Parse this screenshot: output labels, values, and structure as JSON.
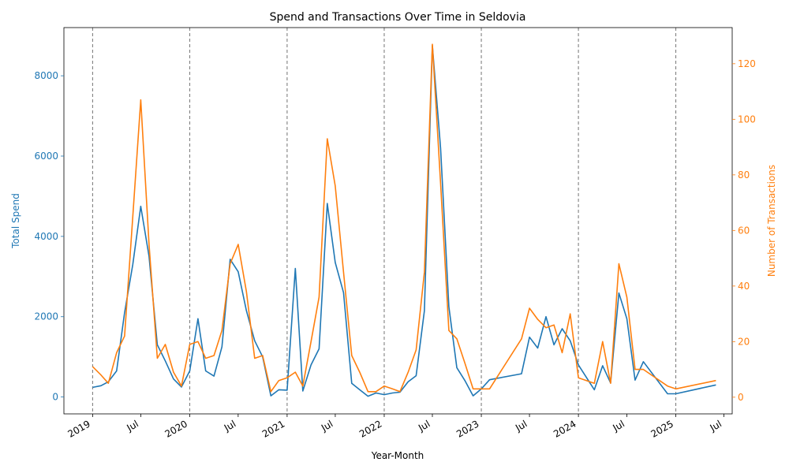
{
  "chart_data": {
    "type": "line",
    "title": "Spend and Transactions Over Time in Seldovia",
    "xlabel": "Year-Month",
    "ylabel_left": "Total Spend",
    "ylabel_right": "Number of Transactions",
    "left_color": "#1f77b4",
    "right_color": "#ff7f0e",
    "xlim": [
      "2018-09-15",
      "2025-08-01"
    ],
    "ylim_left": [
      -420,
      9200
    ],
    "ylim_right": [
      -6,
      133
    ],
    "left_ticks": [
      0,
      2000,
      4000,
      6000,
      8000
    ],
    "left_tick_labels": [
      "0",
      "2000",
      "4000",
      "6000",
      "8000"
    ],
    "right_ticks": [
      0,
      20,
      40,
      60,
      80,
      100,
      120
    ],
    "right_tick_labels": [
      "0",
      "20",
      "40",
      "60",
      "80",
      "100",
      "120"
    ],
    "x_ticks": [
      "2019-01-01",
      "2019-07-01",
      "2020-01-01",
      "2020-07-01",
      "2021-01-01",
      "2021-07-01",
      "2022-01-01",
      "2022-07-01",
      "2023-01-01",
      "2023-07-01",
      "2024-01-01",
      "2024-07-01",
      "2025-01-01",
      "2025-07-01"
    ],
    "x_tick_labels": [
      "2019",
      "Jul",
      "2020",
      "Jul",
      "2021",
      "Jul",
      "2022",
      "Jul",
      "2023",
      "Jul",
      "2024",
      "Jul",
      "2025",
      "Jul"
    ],
    "year_lines": [
      "2019-01-01",
      "2020-01-01",
      "2021-01-01",
      "2022-01-01",
      "2023-01-01",
      "2024-01-01",
      "2025-01-01"
    ],
    "series": [
      {
        "name": "Total Spend",
        "axis": "left",
        "points": [
          [
            "2019-01-01",
            240
          ],
          [
            "2019-02-01",
            280
          ],
          [
            "2019-03-01",
            380
          ],
          [
            "2019-04-01",
            650
          ],
          [
            "2019-05-01",
            2100
          ],
          [
            "2019-06-01",
            3300
          ],
          [
            "2019-07-01",
            4750
          ],
          [
            "2019-08-01",
            3500
          ],
          [
            "2019-09-01",
            1300
          ],
          [
            "2019-10-01",
            900
          ],
          [
            "2019-11-01",
            450
          ],
          [
            "2019-12-01",
            250
          ],
          [
            "2020-01-01",
            650
          ],
          [
            "2020-02-01",
            1950
          ],
          [
            "2020-03-01",
            650
          ],
          [
            "2020-04-01",
            520
          ],
          [
            "2020-05-01",
            1250
          ],
          [
            "2020-06-01",
            3430
          ],
          [
            "2020-07-01",
            3120
          ],
          [
            "2020-08-01",
            2150
          ],
          [
            "2020-09-01",
            1400
          ],
          [
            "2020-10-01",
            1000
          ],
          [
            "2020-11-01",
            30
          ],
          [
            "2020-12-01",
            180
          ],
          [
            "2021-01-01",
            170
          ],
          [
            "2021-02-01",
            3200
          ],
          [
            "2021-03-01",
            150
          ],
          [
            "2021-04-01",
            800
          ],
          [
            "2021-05-01",
            1200
          ],
          [
            "2021-06-01",
            4820
          ],
          [
            "2021-07-01",
            3350
          ],
          [
            "2021-08-01",
            2600
          ],
          [
            "2021-09-01",
            340
          ],
          [
            "2021-10-01",
            180
          ],
          [
            "2021-11-01",
            20
          ],
          [
            "2021-12-01",
            100
          ],
          [
            "2022-01-01",
            60
          ],
          [
            "2022-02-01",
            100
          ],
          [
            "2022-03-01",
            120
          ],
          [
            "2022-04-01",
            380
          ],
          [
            "2022-05-01",
            530
          ],
          [
            "2022-06-01",
            2150
          ],
          [
            "2022-07-01",
            8750
          ],
          [
            "2022-08-01",
            6200
          ],
          [
            "2022-09-01",
            2250
          ],
          [
            "2022-10-01",
            730
          ],
          [
            "2022-11-01",
            400
          ],
          [
            "2022-12-01",
            30
          ],
          [
            "2023-01-01",
            200
          ],
          [
            "2023-02-01",
            430
          ],
          [
            "2023-06-01",
            580
          ],
          [
            "2023-07-01",
            1490
          ],
          [
            "2023-08-01",
            1220
          ],
          [
            "2023-09-01",
            2000
          ],
          [
            "2023-10-01",
            1300
          ],
          [
            "2023-11-01",
            1700
          ],
          [
            "2023-12-01",
            1400
          ],
          [
            "2024-01-01",
            800
          ],
          [
            "2024-03-01",
            180
          ],
          [
            "2024-04-01",
            780
          ],
          [
            "2024-05-01",
            350
          ],
          [
            "2024-06-01",
            2590
          ],
          [
            "2024-07-01",
            1950
          ],
          [
            "2024-08-01",
            420
          ],
          [
            "2024-09-01",
            880
          ],
          [
            "2024-12-01",
            80
          ],
          [
            "2025-01-01",
            80
          ],
          [
            "2025-06-01",
            300
          ]
        ]
      },
      {
        "name": "Number of Transactions",
        "axis": "right",
        "points": [
          [
            "2019-01-01",
            11
          ],
          [
            "2019-02-01",
            8
          ],
          [
            "2019-03-01",
            5
          ],
          [
            "2019-04-01",
            16
          ],
          [
            "2019-05-01",
            22
          ],
          [
            "2019-06-01",
            65
          ],
          [
            "2019-07-01",
            107
          ],
          [
            "2019-08-01",
            55
          ],
          [
            "2019-09-01",
            14
          ],
          [
            "2019-10-01",
            19
          ],
          [
            "2019-11-01",
            9
          ],
          [
            "2019-12-01",
            4
          ],
          [
            "2020-01-01",
            19
          ],
          [
            "2020-02-01",
            20
          ],
          [
            "2020-03-01",
            14
          ],
          [
            "2020-04-01",
            15
          ],
          [
            "2020-05-01",
            24
          ],
          [
            "2020-06-01",
            48
          ],
          [
            "2020-07-01",
            55
          ],
          [
            "2020-08-01",
            38
          ],
          [
            "2020-09-01",
            14
          ],
          [
            "2020-10-01",
            15
          ],
          [
            "2020-11-01",
            2
          ],
          [
            "2020-12-01",
            6
          ],
          [
            "2021-01-01",
            7
          ],
          [
            "2021-02-01",
            9
          ],
          [
            "2021-03-01",
            4
          ],
          [
            "2021-04-01",
            20
          ],
          [
            "2021-05-01",
            36
          ],
          [
            "2021-06-01",
            93
          ],
          [
            "2021-07-01",
            76
          ],
          [
            "2021-08-01",
            45
          ],
          [
            "2021-09-01",
            15
          ],
          [
            "2021-10-01",
            9
          ],
          [
            "2021-11-01",
            2
          ],
          [
            "2021-12-01",
            2
          ],
          [
            "2022-01-01",
            4
          ],
          [
            "2022-02-01",
            3
          ],
          [
            "2022-03-01",
            2
          ],
          [
            "2022-04-01",
            9
          ],
          [
            "2022-05-01",
            17
          ],
          [
            "2022-06-01",
            45
          ],
          [
            "2022-07-01",
            127
          ],
          [
            "2022-08-01",
            77
          ],
          [
            "2022-09-01",
            24
          ],
          [
            "2022-10-01",
            21
          ],
          [
            "2022-11-01",
            12
          ],
          [
            "2022-12-01",
            3
          ],
          [
            "2023-01-01",
            3
          ],
          [
            "2023-02-01",
            3
          ],
          [
            "2023-06-01",
            21
          ],
          [
            "2023-07-01",
            32
          ],
          [
            "2023-08-01",
            28
          ],
          [
            "2023-09-01",
            25
          ],
          [
            "2023-10-01",
            26
          ],
          [
            "2023-11-01",
            16
          ],
          [
            "2023-12-01",
            30
          ],
          [
            "2024-01-01",
            7
          ],
          [
            "2024-03-01",
            5
          ],
          [
            "2024-04-01",
            20
          ],
          [
            "2024-05-01",
            5
          ],
          [
            "2024-06-01",
            48
          ],
          [
            "2024-07-01",
            36
          ],
          [
            "2024-08-01",
            10
          ],
          [
            "2024-09-01",
            10
          ],
          [
            "2024-12-01",
            4
          ],
          [
            "2025-01-01",
            3
          ],
          [
            "2025-06-01",
            6
          ]
        ]
      }
    ]
  }
}
